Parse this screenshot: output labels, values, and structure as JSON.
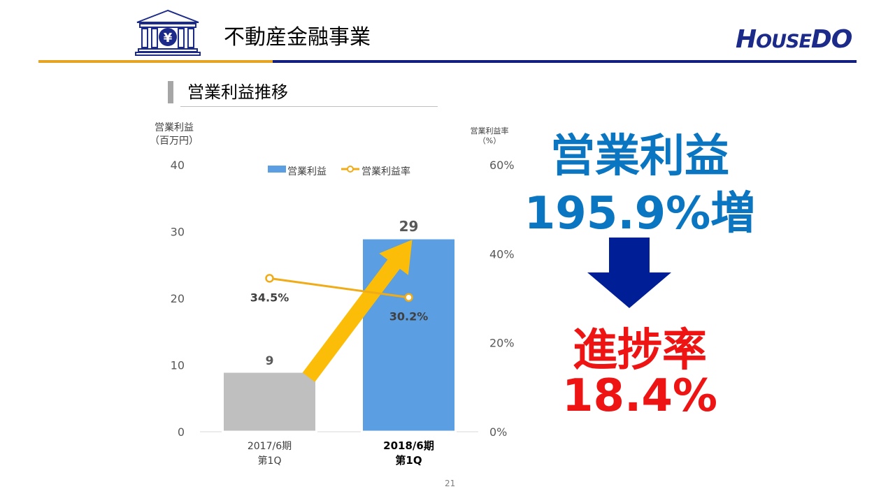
{
  "header": {
    "title": "不動産金融事業",
    "logo_text": "HOUSEDO",
    "logo_parts": [
      "H",
      "OUSE",
      "DO"
    ],
    "accent_color": "#e6a425",
    "brand_color": "#132080"
  },
  "section": {
    "title": "営業利益推移"
  },
  "chart_data": {
    "type": "bar",
    "categories": [
      [
        "2017/6期",
        "第1Q"
      ],
      [
        "2018/6期",
        "第1Q"
      ]
    ],
    "series": [
      {
        "name": "営業利益",
        "type": "bar",
        "axis": "left",
        "values": [
          9,
          29
        ],
        "labels": [
          "9",
          "29"
        ],
        "colors": [
          "#bfbfbf",
          "#5b9ee2"
        ]
      },
      {
        "name": "営業利益率",
        "type": "line",
        "axis": "right",
        "values": [
          34.5,
          30.2
        ],
        "labels": [
          "34.5%",
          "30.2%"
        ],
        "color": "#f0ac18"
      }
    ],
    "ylabel": [
      "営業利益",
      "（百万円）"
    ],
    "ylabel_right": [
      "営業利益率",
      "（%）"
    ],
    "ylim": [
      0,
      40
    ],
    "yticks": [
      "0",
      "10",
      "20",
      "30",
      "40"
    ],
    "ylim_right": [
      0,
      60
    ],
    "yticks_right": [
      "0%",
      "20%",
      "40%",
      "60%"
    ],
    "legend": {
      "position": "top-center",
      "entries": [
        "営業利益",
        "営業利益率"
      ]
    },
    "grid": false,
    "annotation": {
      "type": "arrow",
      "color": "#fbbd08"
    }
  },
  "highlight": {
    "title": "営業利益",
    "value": "195.9%増",
    "label": "進捗率",
    "rate": "18.4%",
    "arrow_color": "#001e96",
    "blue": "#0a75c0",
    "red": "#ef1414"
  },
  "page_number": "21"
}
